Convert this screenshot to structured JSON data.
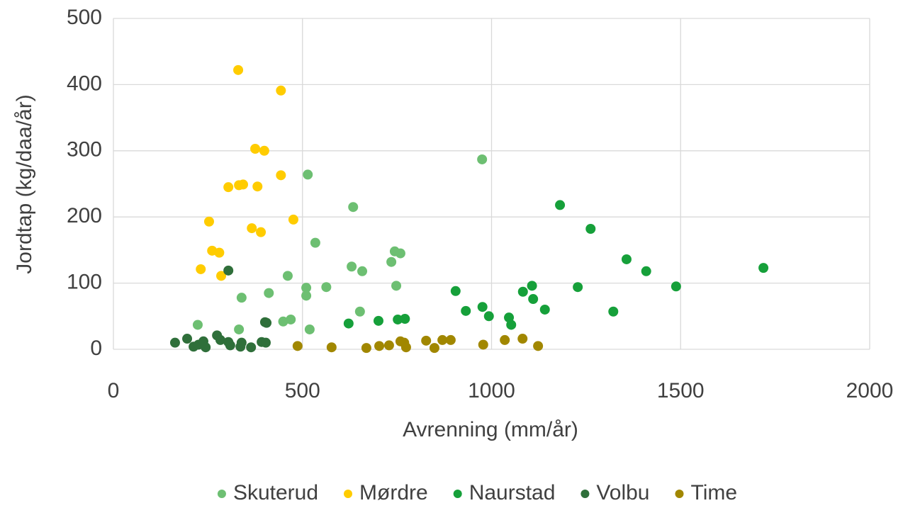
{
  "chart_data": {
    "type": "scatter",
    "x_label": "Avrenning (mm/år)",
    "y_label": "Jordtap (kg/daa/år)",
    "xlim": [
      0,
      2000
    ],
    "xticks": [
      0,
      500,
      1000,
      1500,
      2000
    ],
    "ylim": [
      0,
      500
    ],
    "yticks": [
      0,
      100,
      200,
      300,
      400,
      500
    ],
    "grid": true,
    "legend": "bottom",
    "series": [
      {
        "name": "Skuterud",
        "color": "#6dbf72",
        "x": [
          223,
          332,
          339,
          411,
          461,
          449,
          469,
          514,
          510,
          510,
          519,
          534,
          563,
          630,
          634,
          652,
          658,
          735,
          744,
          759,
          748,
          975
        ],
        "values": [
          37,
          30,
          78,
          85,
          111,
          42,
          45,
          264,
          93,
          81,
          30,
          161,
          94,
          125,
          215,
          57,
          118,
          132,
          148,
          145,
          96,
          287
        ]
      },
      {
        "name": "Mørdre",
        "color": "#ffcc00",
        "x": [
          330,
          443,
          375,
          399,
          304,
          332,
          343,
          381,
          443,
          253,
          366,
          390,
          476,
          261,
          280,
          231,
          285
        ],
        "values": [
          422,
          391,
          303,
          300,
          245,
          248,
          249,
          246,
          263,
          193,
          183,
          177,
          196,
          149,
          146,
          121,
          111
        ]
      },
      {
        "name": "Naurstad",
        "color": "#16a03a",
        "x": [
          1181,
          1262,
          1357,
          1409,
          1719,
          1488,
          1228,
          1322,
          905,
          976,
          932,
          993,
          1107,
          1083,
          1110,
          1141,
          1046,
          1052,
          622,
          701,
          752,
          771
        ],
        "values": [
          218,
          182,
          136,
          118,
          123,
          95,
          94,
          57,
          88,
          64,
          58,
          50,
          96,
          87,
          76,
          60,
          48,
          37,
          39,
          43,
          45,
          46
        ]
      },
      {
        "name": "Volbu",
        "color": "#2f6f3a",
        "x": [
          304,
          163,
          195,
          212,
          225,
          238,
          244,
          274,
          283,
          304,
          309,
          336,
          339,
          364,
          392,
          403,
          401,
          405
        ],
        "values": [
          119,
          10,
          16,
          4,
          7,
          12,
          3,
          21,
          14,
          11,
          6,
          4,
          10,
          3,
          11,
          10,
          41,
          40
        ]
      },
      {
        "name": "Time",
        "color": "#a18700",
        "x": [
          487,
          577,
          669,
          703,
          729,
          759,
          769,
          774,
          827,
          849,
          870,
          892,
          978,
          1035,
          1082,
          1123
        ],
        "values": [
          5,
          3,
          2,
          5,
          6,
          12,
          10,
          3,
          13,
          2,
          14,
          14,
          7,
          14,
          16,
          5
        ]
      }
    ]
  }
}
